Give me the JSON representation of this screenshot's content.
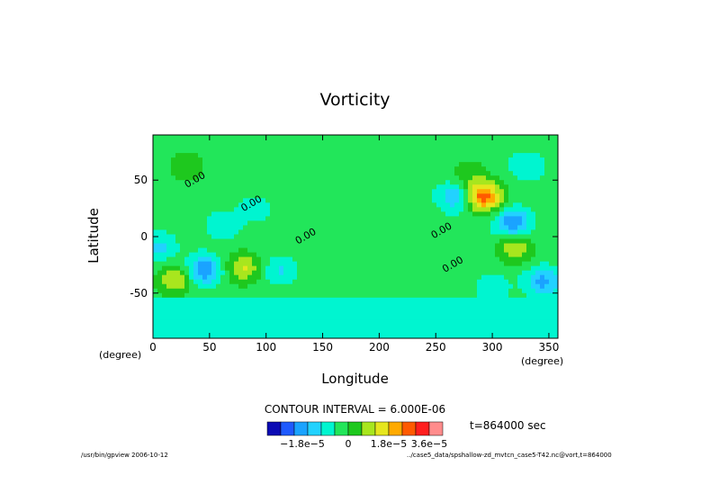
{
  "chart_data": {
    "type": "heatmap",
    "title": "Vorticity",
    "xlabel": "Longitude",
    "ylabel": "Latitude",
    "x_unit": "(degree)",
    "y_unit": "(degree)",
    "xlim": [
      0,
      358
    ],
    "ylim": [
      -90,
      90
    ],
    "x_ticks": [
      0,
      50,
      100,
      150,
      200,
      250,
      300,
      350
    ],
    "y_ticks": [
      -50,
      0,
      50
    ],
    "contour_interval_text": "CONTOUR INTERVAL = 6.000E-06",
    "contour_labels": [
      "0.00",
      "0.00",
      "0.00",
      "0.00",
      "0.00"
    ],
    "colorbar": {
      "colors": [
        "#0b0bb4",
        "#1f5aff",
        "#1aa3ff",
        "#22d2ff",
        "#00f5d0",
        "#22e65a",
        "#1ec81e",
        "#a8e61e",
        "#e6e61e",
        "#ffaa00",
        "#ff5a00",
        "#ff1e1e",
        "#ff8c8c"
      ],
      "tick_labels": [
        "−1.8e−5",
        "0",
        "1.8e−5",
        "3.6e−5"
      ]
    },
    "field": {
      "background": -1.0,
      "features": [
        {
          "lon": 45,
          "lat": -30,
          "amp": -3.5
        },
        {
          "lon": 5,
          "lat": -10,
          "amp": -1.8
        },
        {
          "lon": 20,
          "lat": -38,
          "amp": 2.6
        },
        {
          "lon": 80,
          "lat": -28,
          "amp": 2.6
        },
        {
          "lon": 112,
          "lat": -30,
          "amp": -1.6
        },
        {
          "lon": 62,
          "lat": 10,
          "amp": -1.2
        },
        {
          "lon": 90,
          "lat": 25,
          "amp": -1.0
        },
        {
          "lon": 30,
          "lat": 62,
          "amp": 1.2
        },
        {
          "lon": 292,
          "lat": 35,
          "amp": 5.2
        },
        {
          "lon": 268,
          "lat": 35,
          "amp": -2.6
        },
        {
          "lon": 318,
          "lat": 12,
          "amp": -3.4
        },
        {
          "lon": 320,
          "lat": -10,
          "amp": 2.4
        },
        {
          "lon": 345,
          "lat": -40,
          "amp": -2.8
        },
        {
          "lon": 330,
          "lat": 62,
          "amp": -1.4
        },
        {
          "lon": 280,
          "lat": 55,
          "amp": 1.2
        },
        {
          "lon": 300,
          "lat": -45,
          "amp": -1.2
        }
      ],
      "south_band": {
        "lat_max": -55,
        "value": -2.0
      }
    },
    "time_label": "t=864000 sec",
    "footer_left": "/usr/bin/gpview   2006-10-12",
    "footer_right": "../case5_data/spshallow-zd_mvtcn_case5-T42.nc@vort,t=864000"
  }
}
